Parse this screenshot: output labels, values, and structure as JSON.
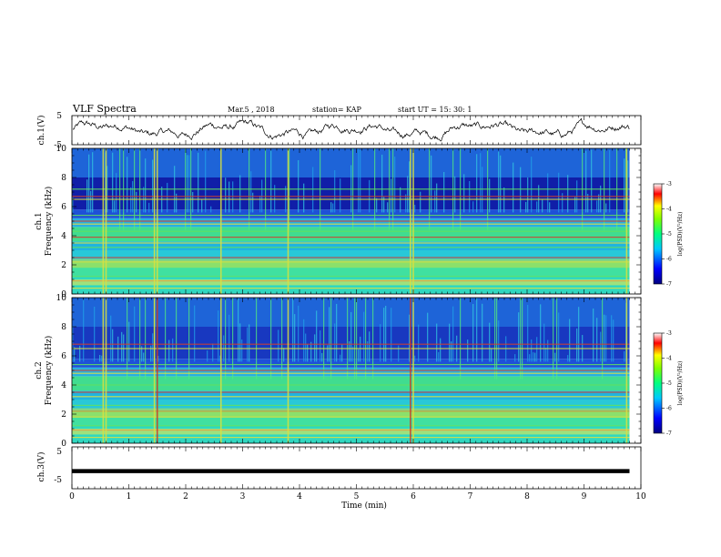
{
  "header": {
    "title": "VLF Spectra",
    "date": "Mar.5 , 2018",
    "station": "station= KAP",
    "start": "start UT = 15: 30: 1"
  },
  "chart_data": [
    {
      "type": "line",
      "name": "waveform-ch1",
      "ylabel": "ch.1(V)",
      "ylim": [
        -5,
        5
      ],
      "yticks": [
        "5",
        "-5"
      ],
      "xlim": [
        0,
        10
      ],
      "data_x_extent": [
        0,
        9.8
      ]
    },
    {
      "type": "heatmap",
      "name": "spectrogram-ch1",
      "ylabel": [
        "ch.1",
        "Frequency (kHz)"
      ],
      "ylim": [
        0,
        10
      ],
      "yticks": [
        "0",
        "2",
        "4",
        "6",
        "8",
        "10"
      ],
      "xlim": [
        0,
        10
      ],
      "colorbar": {
        "label": "log(PSD)(V²/Hz)",
        "range": [
          -7,
          -3
        ],
        "ticks": [
          "-3",
          "-4",
          "-5",
          "-6",
          "-7"
        ]
      },
      "bright_lines_khz": [
        0.4,
        0.9,
        1.2,
        2.2,
        2.5,
        3.2,
        3.5,
        3.9,
        4.3,
        4.8,
        5.0,
        5.4,
        6.5,
        6.7,
        7.2
      ],
      "impulse_times_min": [
        0.55,
        0.6,
        1.45,
        1.5,
        2.62,
        3.8,
        5.95,
        6.0,
        9.75
      ]
    },
    {
      "type": "heatmap",
      "name": "spectrogram-ch2",
      "ylabel": [
        "ch.2",
        "Frequency (kHz)"
      ],
      "ylim": [
        0,
        10
      ],
      "yticks": [
        "0",
        "2",
        "4",
        "6",
        "8",
        "10"
      ],
      "xlim": [
        0,
        10
      ],
      "colorbar": {
        "label": "log(PSD)(V²/Hz)",
        "range": [
          -7,
          -3
        ],
        "ticks": [
          "-3",
          "-4",
          "-5",
          "-6",
          "-7"
        ]
      },
      "bright_lines_khz": [
        0.4,
        0.9,
        1.2,
        1.8,
        2.2,
        2.6,
        3.2,
        3.5,
        4.0,
        4.8,
        5.0,
        5.4,
        6.5,
        6.8
      ],
      "impulse_times_min": [
        0.55,
        0.6,
        1.45,
        1.5,
        2.62,
        3.8,
        5.95,
        6.0,
        9.75
      ]
    },
    {
      "type": "line",
      "name": "waveform-ch3",
      "ylabel": "ch.3(V)",
      "ylim": [
        -5,
        5
      ],
      "yticks": [
        "5",
        "-5"
      ],
      "xlim": [
        0,
        10
      ],
      "x": [
        0,
        9.8
      ],
      "y": [
        -0.8,
        -0.8
      ]
    }
  ],
  "x_axis": {
    "label": "Time (min)",
    "ticks": [
      "0",
      "1",
      "2",
      "3",
      "4",
      "5",
      "6",
      "7",
      "8",
      "9",
      "10"
    ]
  },
  "colors": {
    "deep_blue": "#0a1496",
    "blue": "#1e3cd2",
    "cyan": "#1ec8dc",
    "green": "#46e664",
    "yellow": "#e6e650",
    "red": "#c83228"
  }
}
